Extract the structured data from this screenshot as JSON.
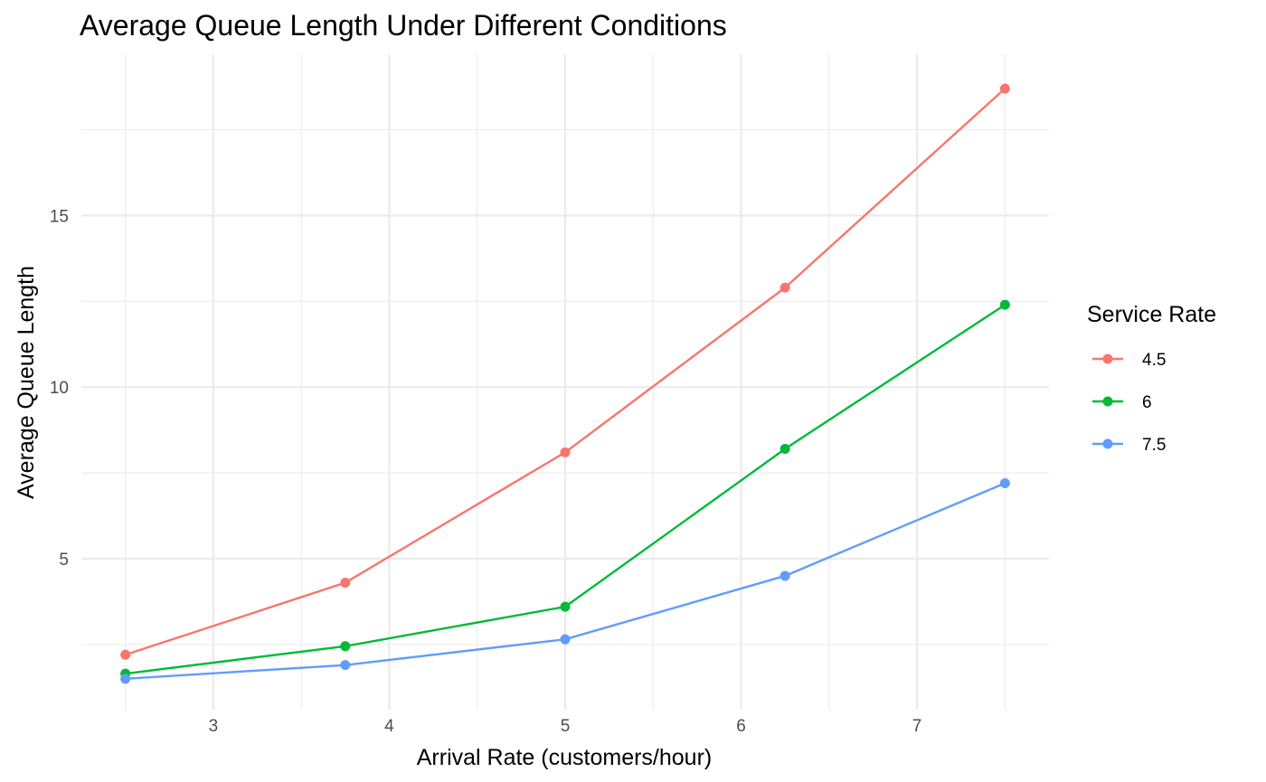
{
  "chart_data": {
    "type": "line",
    "title": "Average Queue Length Under Different Conditions",
    "xlabel": "Arrival Rate (customers/hour)",
    "ylabel": "Average Queue Length",
    "x": [
      2.5,
      3.75,
      5,
      6.25,
      7.5
    ],
    "xlim": [
      2.25,
      7.75
    ],
    "ylim": [
      0.6,
      19.7
    ],
    "x_ticks": [
      3,
      4,
      5,
      6,
      7
    ],
    "y_ticks": [
      5,
      10,
      15
    ],
    "grid": true,
    "legend": {
      "title": "Service Rate",
      "placement": "right"
    },
    "series": [
      {
        "name": "4.5",
        "color": "#F8766D",
        "values": [
          2.2,
          4.3,
          8.1,
          12.9,
          18.7
        ]
      },
      {
        "name": "6",
        "color": "#00BA38",
        "values": [
          1.65,
          2.45,
          3.6,
          8.2,
          12.4
        ]
      },
      {
        "name": "7.5",
        "color": "#619CFF",
        "values": [
          1.5,
          1.9,
          2.65,
          4.5,
          7.2
        ]
      }
    ]
  }
}
